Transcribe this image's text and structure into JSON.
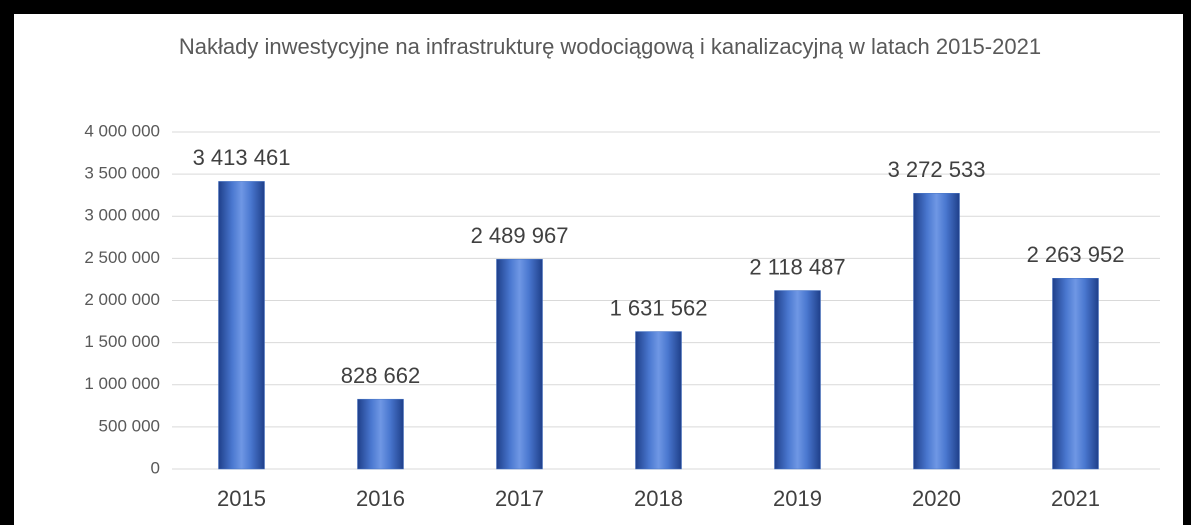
{
  "chart_data": {
    "type": "bar",
    "title": "Nakłady inwestycyjne na infrastrukturę wodociągową i kanalizacyjną w latach 2015-2021",
    "categories": [
      "2015",
      "2016",
      "2017",
      "2018",
      "2019",
      "2020",
      "2021"
    ],
    "values": [
      3413461,
      828662,
      2489967,
      1631562,
      2118487,
      3272533,
      2263952
    ],
    "value_labels": [
      "3 413 461",
      "828 662",
      "2 489 967",
      "1 631 562",
      "2 118 487",
      "3 272 533",
      "2 263 952"
    ],
    "color": "#4472c4",
    "ylim": [
      0,
      4000000
    ],
    "yticks": [
      0,
      {
        "value": 500000,
        "label": "500 000"
      },
      {
        "value": 1000000,
        "label": "1 000 000"
      },
      {
        "value": 1500000,
        "label": "1 500 000"
      },
      {
        "value": 2000000,
        "label": "2 000 000"
      },
      {
        "value": 2500000,
        "label": "2 500 000"
      },
      {
        "value": 3000000,
        "label": "3 000 000"
      },
      {
        "value": 3500000,
        "label": "3 500 000"
      },
      {
        "value": 4000000,
        "label": "4 000 000"
      }
    ],
    "grid": true
  }
}
